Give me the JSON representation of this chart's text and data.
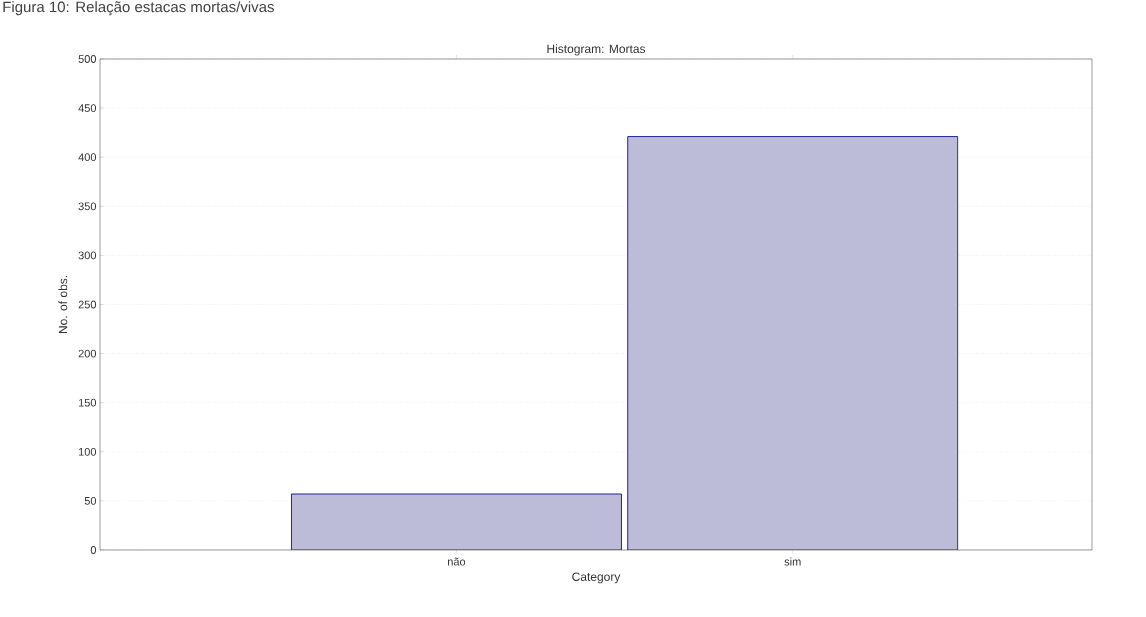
{
  "chart_data": {
    "type": "bar",
    "title": "Histogram: Mortas",
    "xlabel": "Category",
    "ylabel": "No. of obs.",
    "annotations": [
      "Figura 10: Relação estacas mortas/vivas"
    ],
    "categories": [
      "não",
      "sim"
    ],
    "values": [
      57,
      421
    ],
    "color": "#bcbcd9",
    "ylim": [
      0,
      500
    ],
    "yticks": [
      0,
      50,
      100,
      150,
      200,
      250,
      300,
      350,
      400,
      450,
      500
    ],
    "grid": "y"
  }
}
